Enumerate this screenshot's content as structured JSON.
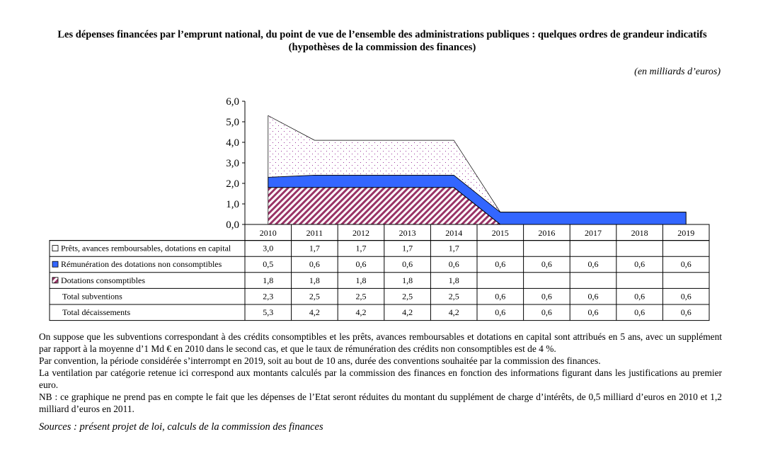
{
  "title_lines": [
    "Les dépenses financées par l’emprunt national, du point de vue de l’ensemble des administrations publiques : quelques ordres de grandeur indicatifs",
    "(hypothèses de la commission des finances)"
  ],
  "unit": "(en milliards d’euros)",
  "chart_data": {
    "type": "area",
    "stacked": true,
    "categories": [
      "2010",
      "2011",
      "2012",
      "2013",
      "2014",
      "2015",
      "2016",
      "2017",
      "2018",
      "2019"
    ],
    "ylim": [
      0,
      6
    ],
    "yticks": [
      "0,0",
      "1,0",
      "2,0",
      "3,0",
      "4,0",
      "5,0",
      "6,0"
    ],
    "grid": false,
    "legend_placement": "table-left",
    "series": [
      {
        "name": "Dotations consomptibles",
        "values": [
          1.8,
          1.8,
          1.8,
          1.8,
          1.8,
          0,
          0,
          0,
          0,
          0
        ],
        "labels": [
          "1,8",
          "1,8",
          "1,8",
          "1,8",
          "1,8",
          "",
          "",
          "",
          "",
          ""
        ],
        "color": "#993366",
        "pattern": "diagonal-hatch"
      },
      {
        "name": "Rémunération des dotations non consomptibles",
        "values": [
          0.5,
          0.6,
          0.6,
          0.6,
          0.6,
          0.6,
          0.6,
          0.6,
          0.6,
          0.6
        ],
        "labels": [
          "0,5",
          "0,6",
          "0,6",
          "0,6",
          "0,6",
          "0,6",
          "0,6",
          "0,6",
          "0,6",
          "0,6"
        ],
        "color": "#3366FF",
        "pattern": "solid"
      },
      {
        "name": "Prêts, avances remboursables, dotations en capital",
        "values": [
          3.0,
          1.7,
          1.7,
          1.7,
          1.7,
          0,
          0,
          0,
          0,
          0
        ],
        "labels": [
          "3,0",
          "1,7",
          "1,7",
          "1,7",
          "1,7",
          "",
          "",
          "",
          "",
          ""
        ],
        "color": "#CC99CC",
        "pattern": "dots"
      }
    ],
    "table_rows_order": [
      2,
      1,
      0
    ],
    "totals": [
      {
        "name": "Total subventions",
        "labels": [
          "2,3",
          "2,5",
          "2,5",
          "2,5",
          "2,5",
          "0,6",
          "0,6",
          "0,6",
          "0,6",
          "0,6"
        ]
      },
      {
        "name": "Total décaissements",
        "labels": [
          "5,3",
          "4,2",
          "4,2",
          "4,2",
          "4,2",
          "0,6",
          "0,6",
          "0,6",
          "0,6",
          "0,6"
        ]
      }
    ]
  },
  "notes": [
    "On suppose que les subventions correspondant à des crédits consomptibles et les prêts, avances remboursables et dotations en capital sont attribués en 5 ans, avec un supplément par rapport à la moyenne d’1 Md € en 2010 dans le second cas, et que le taux de rémunération des crédits non consomptibles est de 4 %.",
    "Par convention, la période considérée s’interrompt en 2019, soit au bout de 10 ans, durée des conventions souhaitée par la commission des finances.",
    "La ventilation par catégorie retenue ici correspond aux montants calculés par la commission des finances en fonction des informations figurant dans les justifications au premier euro.",
    "NB : ce graphique ne prend pas en compte le fait que les dépenses de l’Etat seront réduites du montant du supplément de charge d’intérêts, de 0,5 milliard d’euros en 2010 et 1,2 milliard d’euros en 2011."
  ],
  "sources": "Sources : présent projet de loi, calculs de la commission des finances"
}
